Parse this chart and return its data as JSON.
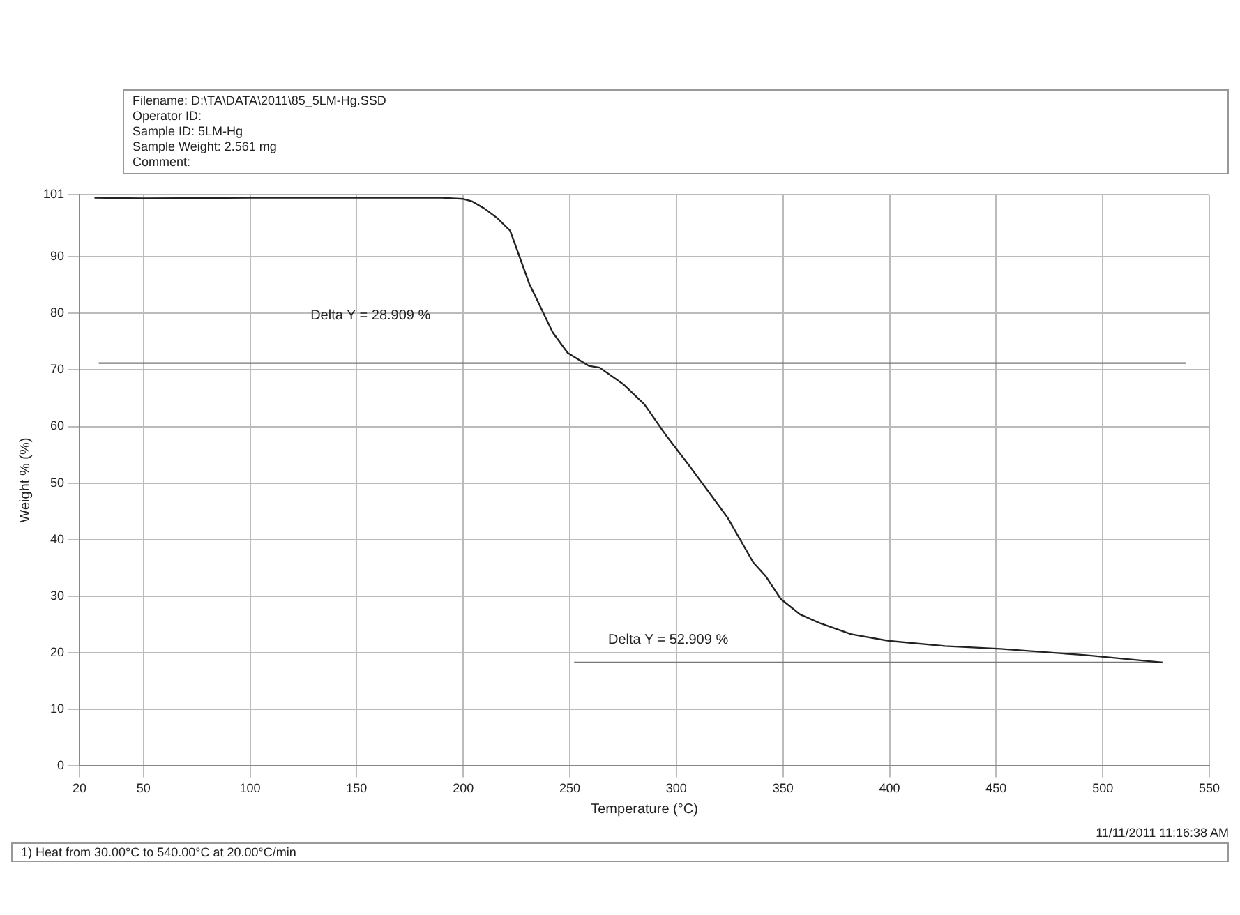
{
  "chart_data": {
    "type": "line",
    "xlabel": "Temperature (°C)",
    "ylabel": "Weight % (%)",
    "xlim": [
      20,
      550
    ],
    "xticks": [
      20,
      50,
      100,
      150,
      200,
      250,
      300,
      350,
      400,
      450,
      500,
      550
    ],
    "ylim": [
      0,
      101
    ],
    "yticks": [
      0,
      10,
      20,
      30,
      40,
      50,
      60,
      70,
      80,
      90,
      101
    ],
    "grid": true,
    "marker": "none",
    "line_style": "solid",
    "series": [
      {
        "color": "#222222",
        "x": [
          27,
          50,
          100,
          150,
          190,
          200,
          204,
          210,
          216,
          222,
          231,
          242,
          249,
          259,
          264,
          275,
          285,
          295,
          305,
          315,
          324,
          336,
          342,
          349,
          358,
          367,
          382,
          400,
          426,
          452,
          492,
          528
        ],
        "values": [
          100.4,
          100.3,
          100.4,
          100.4,
          100.4,
          100.2,
          99.8,
          98.5,
          96.8,
          94.6,
          85.2,
          76.6,
          73.0,
          70.7,
          70.4,
          67.5,
          63.9,
          58.5,
          53.6,
          48.5,
          43.9,
          36.0,
          33.5,
          29.5,
          26.8,
          25.3,
          23.3,
          22.1,
          21.2,
          20.7,
          19.6,
          18.3
        ]
      },
      {
        "color": "#777777",
        "x": [
          29,
          539
        ],
        "values": [
          71.2,
          71.2
        ]
      },
      {
        "color": "#777777",
        "x": [
          252,
          528
        ],
        "values": [
          18.3,
          18.3
        ]
      }
    ],
    "annotations": [
      "Filename: D:\\TA\\DATA\\2011\\85_5LM-Hg.SSD",
      "Operator ID:",
      "Sample ID: 5LM-Hg",
      "Sample Weight: 2.561 mg",
      "Comment:",
      "11/11/2011 11:16:38 AM",
      "1) Heat from 30.00°C to 540.00°C at 20.00°C/min",
      "Delta Y = 28.909 %",
      "Delta Y = 52.909 %"
    ]
  }
}
